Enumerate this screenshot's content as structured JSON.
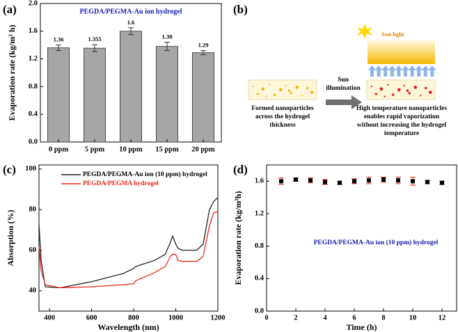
{
  "chart_data": [
    {
      "type": "bar",
      "label": "(a)",
      "title": "PEGDA/PEGMA-Au ion hydrogel",
      "title_color": "#1a1ab4",
      "ylabel": "Evaporation rate (kg/m² h)",
      "categories": [
        "0 ppm",
        "5 ppm",
        "10 ppm",
        "15 ppm",
        "20 ppm"
      ],
      "values": [
        1.36,
        1.355,
        1.6,
        1.38,
        1.29
      ],
      "errors": [
        0.04,
        0.05,
        0.05,
        0.06,
        0.03
      ],
      "color": "#a6a6a6",
      "ylim": [
        0,
        2.0
      ],
      "yticks": [
        {
          "value": 0,
          "label": "0.0"
        },
        0.4,
        0.8,
        1.2,
        1.6,
        {
          "value": 2,
          "label": "2.0"
        }
      ]
    },
    {
      "type": "line",
      "label": "(c)",
      "xlabel": "Wavelength (nm)",
      "ylabel": "Absorption (%)",
      "x": [
        350,
        360,
        380,
        450,
        600,
        750,
        800,
        810,
        900,
        950,
        975,
        985,
        1000,
        1010,
        1030,
        1100,
        1130,
        1160,
        1180,
        1200
      ],
      "series": [
        {
          "name": "PEGDA/PEGMA-Au ion (10 ppm) hydrogel",
          "color": "#222222",
          "values": [
            73,
            55,
            42,
            41.5,
            44.5,
            48.5,
            51,
            52,
            55,
            58,
            64,
            67,
            63,
            61,
            60,
            60,
            63,
            80,
            84,
            86
          ]
        },
        {
          "name": "PEGDA/PEGMA hydrogel",
          "color": "#e8281e",
          "values": [
            62,
            50,
            43,
            41.5,
            42,
            43,
            43.5,
            45,
            49,
            52,
            57,
            58,
            58,
            55,
            54.5,
            54.5,
            57,
            72,
            78.5,
            79
          ]
        }
      ],
      "xlim": [
        350,
        1200
      ],
      "xticks": [
        400,
        600,
        800,
        1000,
        1200
      ],
      "ylim": [
        30,
        102
      ],
      "yticks": [
        40,
        60,
        80,
        100
      ]
    },
    {
      "type": "scatter",
      "label": "(d)",
      "annotation": "PEGDA/PEGMA-Au ion (10 ppm) hydrogel",
      "annotation_color": "#1a1ab4",
      "xlabel": "Time (h)",
      "ylabel": "Evaporation rate (kg/m²h)",
      "x": [
        1,
        2,
        3,
        4,
        5,
        6,
        7,
        8,
        9,
        10,
        11,
        12
      ],
      "values": [
        1.6,
        1.62,
        1.61,
        1.59,
        1.58,
        1.6,
        1.61,
        1.62,
        1.61,
        1.6,
        1.59,
        1.58
      ],
      "errors": [
        0.04,
        0.02,
        0.03,
        0.03,
        0.02,
        0.03,
        0.04,
        0.03,
        0.04,
        0.05,
        0.02,
        0.02
      ],
      "color": "#000000",
      "error_color": "#e8281e",
      "xlim": [
        0,
        13
      ],
      "xticks": [
        0,
        2,
        4,
        6,
        8,
        10,
        12
      ],
      "ylim": [
        0,
        1.8
      ],
      "yticks": [
        {
          "value": 0,
          "label": "0.0"
        },
        0.4,
        0.8,
        1.2,
        1.6
      ]
    }
  ],
  "diagram": {
    "label": "(b)",
    "sun_label": "Sun light",
    "arrow_label": [
      "Sun",
      "illumination"
    ],
    "left_caption": [
      "Formed nanoparticles",
      "across the hydrogel",
      "thickness"
    ],
    "right_caption": [
      "High temperature nanoparticles",
      "enables rapid vaporization",
      "without increasing the hydrogel",
      "temperature"
    ]
  }
}
